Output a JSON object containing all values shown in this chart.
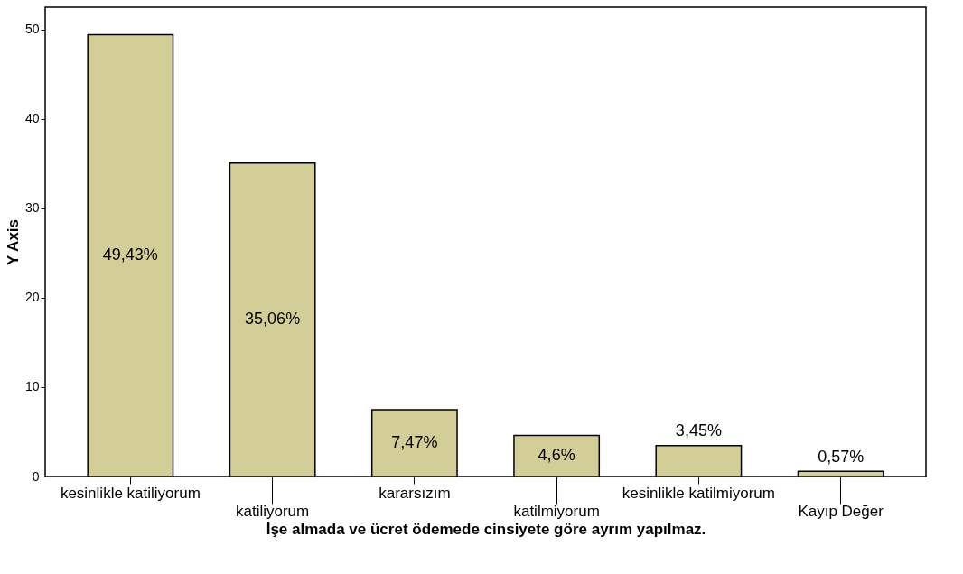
{
  "chart_data": {
    "type": "bar",
    "xlabel": "İşe almada ve ücret ödemede cinsiyete göre ayrım yapılmaz.",
    "ylabel": "Y Axis",
    "categories": [
      "kesinlikle katiliyorum",
      "katiliyorum",
      "kararsızım",
      "katilmiyorum",
      "kesinlikle katilmiyorum",
      "Kayıp Değer"
    ],
    "values": [
      49.43,
      35.06,
      7.47,
      4.6,
      3.45,
      0.57
    ],
    "value_labels": [
      "49,43%",
      "35,06%",
      "7,47%",
      "4,6%",
      "3,45%",
      "0,57%"
    ],
    "color": "#d3ce98",
    "ylim": [
      0,
      52.5
    ],
    "yticks": [
      0,
      10,
      20,
      30,
      40,
      50
    ],
    "grid": false
  }
}
